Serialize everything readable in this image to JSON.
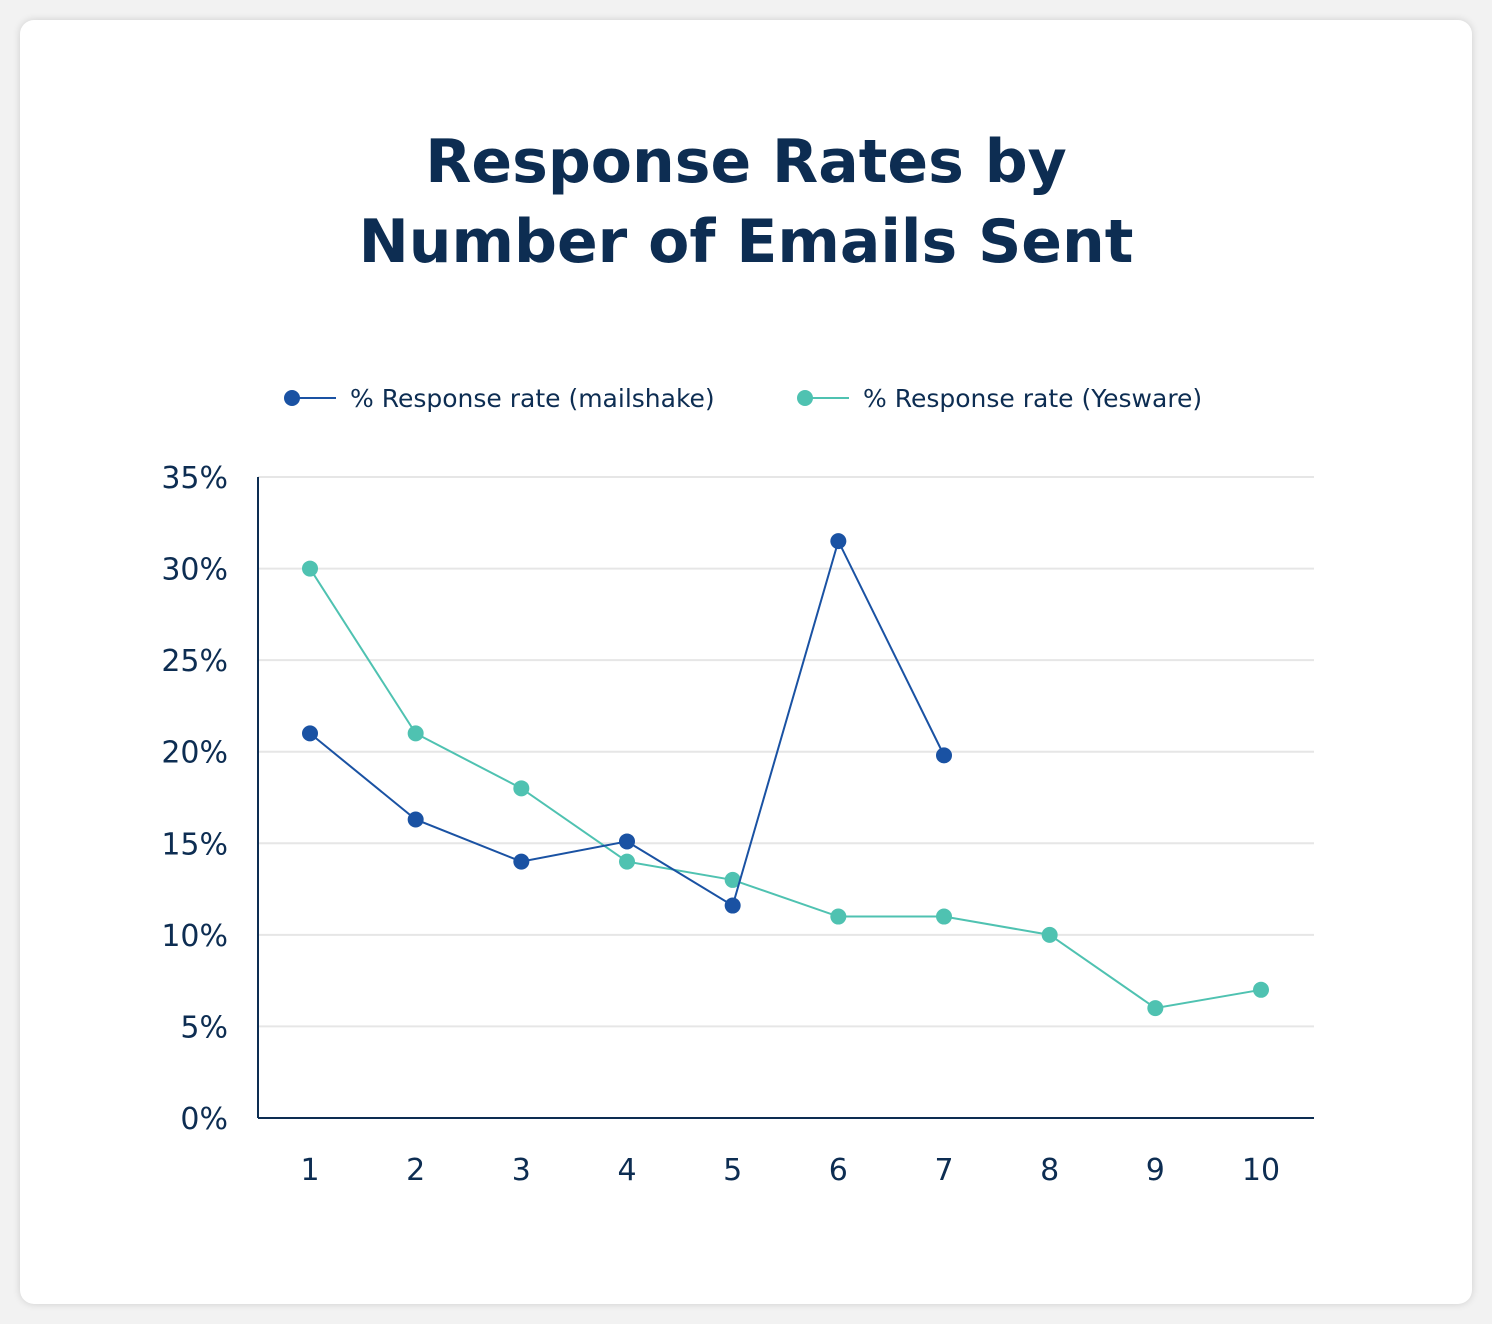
{
  "chart_data": {
    "type": "line",
    "title_line1": "Response Rates by",
    "title_line2": "Number of Emails Sent",
    "xlabel": "",
    "ylabel": "",
    "categories": [
      "1",
      "2",
      "3",
      "4",
      "5",
      "6",
      "7",
      "8",
      "9",
      "10"
    ],
    "ylim": [
      0,
      35
    ],
    "yticks": [
      "0%",
      "5%",
      "10%",
      "15%",
      "20%",
      "25%",
      "30%",
      "35%"
    ],
    "grid": true,
    "legend_position": "top",
    "series": [
      {
        "name": "% Response rate (mailshake)",
        "color": "#1a52a3",
        "values": [
          21,
          16.3,
          14,
          15.1,
          11.6,
          31.5,
          19.8,
          null,
          null,
          null
        ]
      },
      {
        "name": "% Response rate (Yesware)",
        "color": "#4fc2b1",
        "values": [
          30,
          21,
          18,
          14,
          13,
          11,
          11,
          10,
          6,
          7
        ]
      }
    ]
  }
}
